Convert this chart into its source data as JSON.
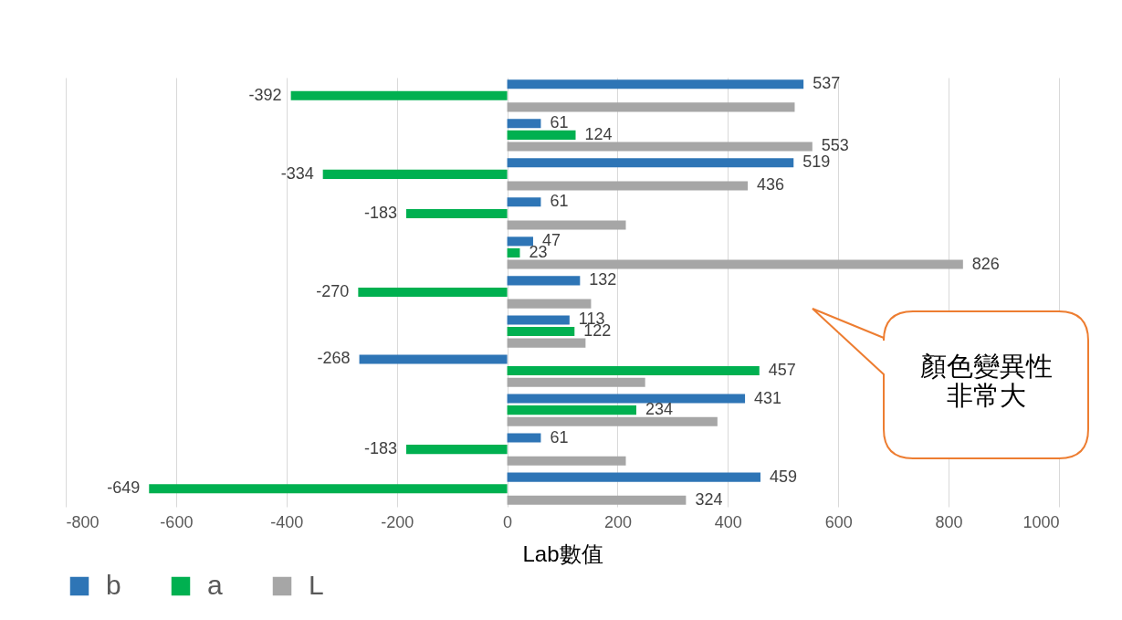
{
  "chart_data": {
    "type": "bar",
    "orientation": "horizontal",
    "xlabel": "Lab數值",
    "categories": [
      null,
      null,
      null,
      null,
      null,
      null,
      null,
      null,
      null,
      null,
      null
    ],
    "series": [
      {
        "name": "b",
        "color": "#2e75b6",
        "values": [
          537,
          61,
          519,
          61,
          47,
          132,
          113,
          -268,
          431,
          61,
          459
        ],
        "value_labels": [
          "537",
          "61",
          "519",
          "61",
          "47",
          "132",
          "113",
          "-268",
          "431",
          "61",
          "459"
        ]
      },
      {
        "name": "a",
        "color": "#00b050",
        "values": [
          -392,
          124,
          -334,
          -183,
          23,
          -270,
          122,
          457,
          234,
          -183,
          -649
        ],
        "value_labels": [
          "-392",
          "124",
          "-334",
          "-183",
          "23",
          "-270",
          "122",
          "457",
          "234",
          "-183",
          "-649"
        ]
      },
      {
        "name": "L",
        "color": "#a6a6a6",
        "values": [
          521,
          553,
          436,
          215,
          826,
          152,
          142,
          250,
          381,
          215,
          324
        ],
        "value_labels": [
          null,
          "553",
          "436",
          null,
          "826",
          null,
          null,
          null,
          null,
          null,
          "324"
        ]
      }
    ],
    "xlim": [
      -800,
      1000
    ],
    "xticks": [
      -800,
      -600,
      -400,
      -200,
      0,
      200,
      400,
      600,
      800,
      1000
    ],
    "grid": "x",
    "legend": "bottom",
    "tick_labels": "x",
    "annotations": [
      "顏色變異性非常大"
    ]
  }
}
